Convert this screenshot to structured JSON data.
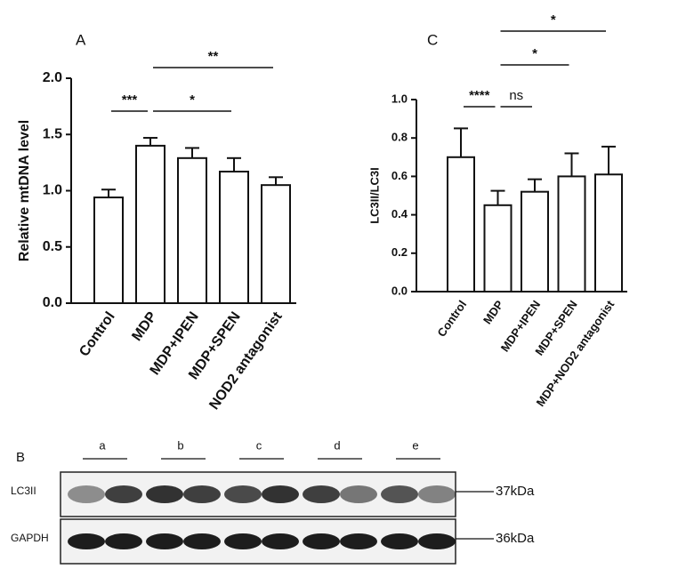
{
  "chart_data": [
    {
      "type": "bar",
      "panel": "A",
      "ylabel": "Relative mtDNA level",
      "categories": [
        "Control",
        "MDP",
        "MDP+IPEN",
        "MDP+SPEN",
        "NOD2 antagonist"
      ],
      "values": [
        0.94,
        1.4,
        1.29,
        1.17,
        1.05
      ],
      "errors": [
        0.07,
        0.07,
        0.09,
        0.12,
        0.07
      ],
      "color": "#ffffff",
      "ylim": [
        0,
        2
      ],
      "yticks": [
        {
          "value": 0,
          "label": "0.0"
        },
        0.5,
        {
          "value": 1,
          "label": "1.0"
        },
        1.5,
        {
          "value": 2,
          "label": "2.0"
        }
      ],
      "annotations": [
        {
          "text": "***",
          "from": "Control",
          "to": "MDP"
        },
        {
          "text": "*",
          "from": "MDP",
          "to": "MDP+SPEN"
        },
        {
          "text": "**",
          "from": "MDP",
          "to": "NOD2 antagonist"
        }
      ]
    },
    {
      "type": "bar",
      "panel": "C",
      "ylabel": "LC3II/LC3I",
      "categories": [
        "Control",
        "MDP",
        "MDP+IPEN",
        "MDP+SPEN",
        "MDP+NOD2 antagonist"
      ],
      "values": [
        0.7,
        0.45,
        0.52,
        0.6,
        0.61
      ],
      "errors": [
        0.15,
        0.075,
        0.065,
        0.12,
        0.145
      ],
      "color": "#ffffff",
      "ylim": [
        0,
        1
      ],
      "yticks": [
        {
          "value": 0,
          "label": "0.0"
        },
        0.2,
        0.4,
        0.6,
        0.8,
        {
          "value": 1,
          "label": "1.0"
        }
      ],
      "annotations": [
        {
          "text": "****",
          "from": "Control",
          "to": "MDP"
        },
        {
          "text": "ns",
          "from": "MDP",
          "to": "MDP+IPEN"
        },
        {
          "text": "*",
          "from": "MDP",
          "to": "MDP+SPEN"
        },
        {
          "text": "*",
          "from": "MDP",
          "to": "MDP+NOD2 antagonist"
        }
      ]
    }
  ],
  "blot": {
    "panel": "B",
    "lane_groups": [
      "a",
      "b",
      "c",
      "d",
      "e"
    ],
    "rows": [
      {
        "name": "LC3II",
        "size": "37kDa"
      },
      {
        "name": "GAPDH",
        "size": "36kDa"
      }
    ]
  }
}
